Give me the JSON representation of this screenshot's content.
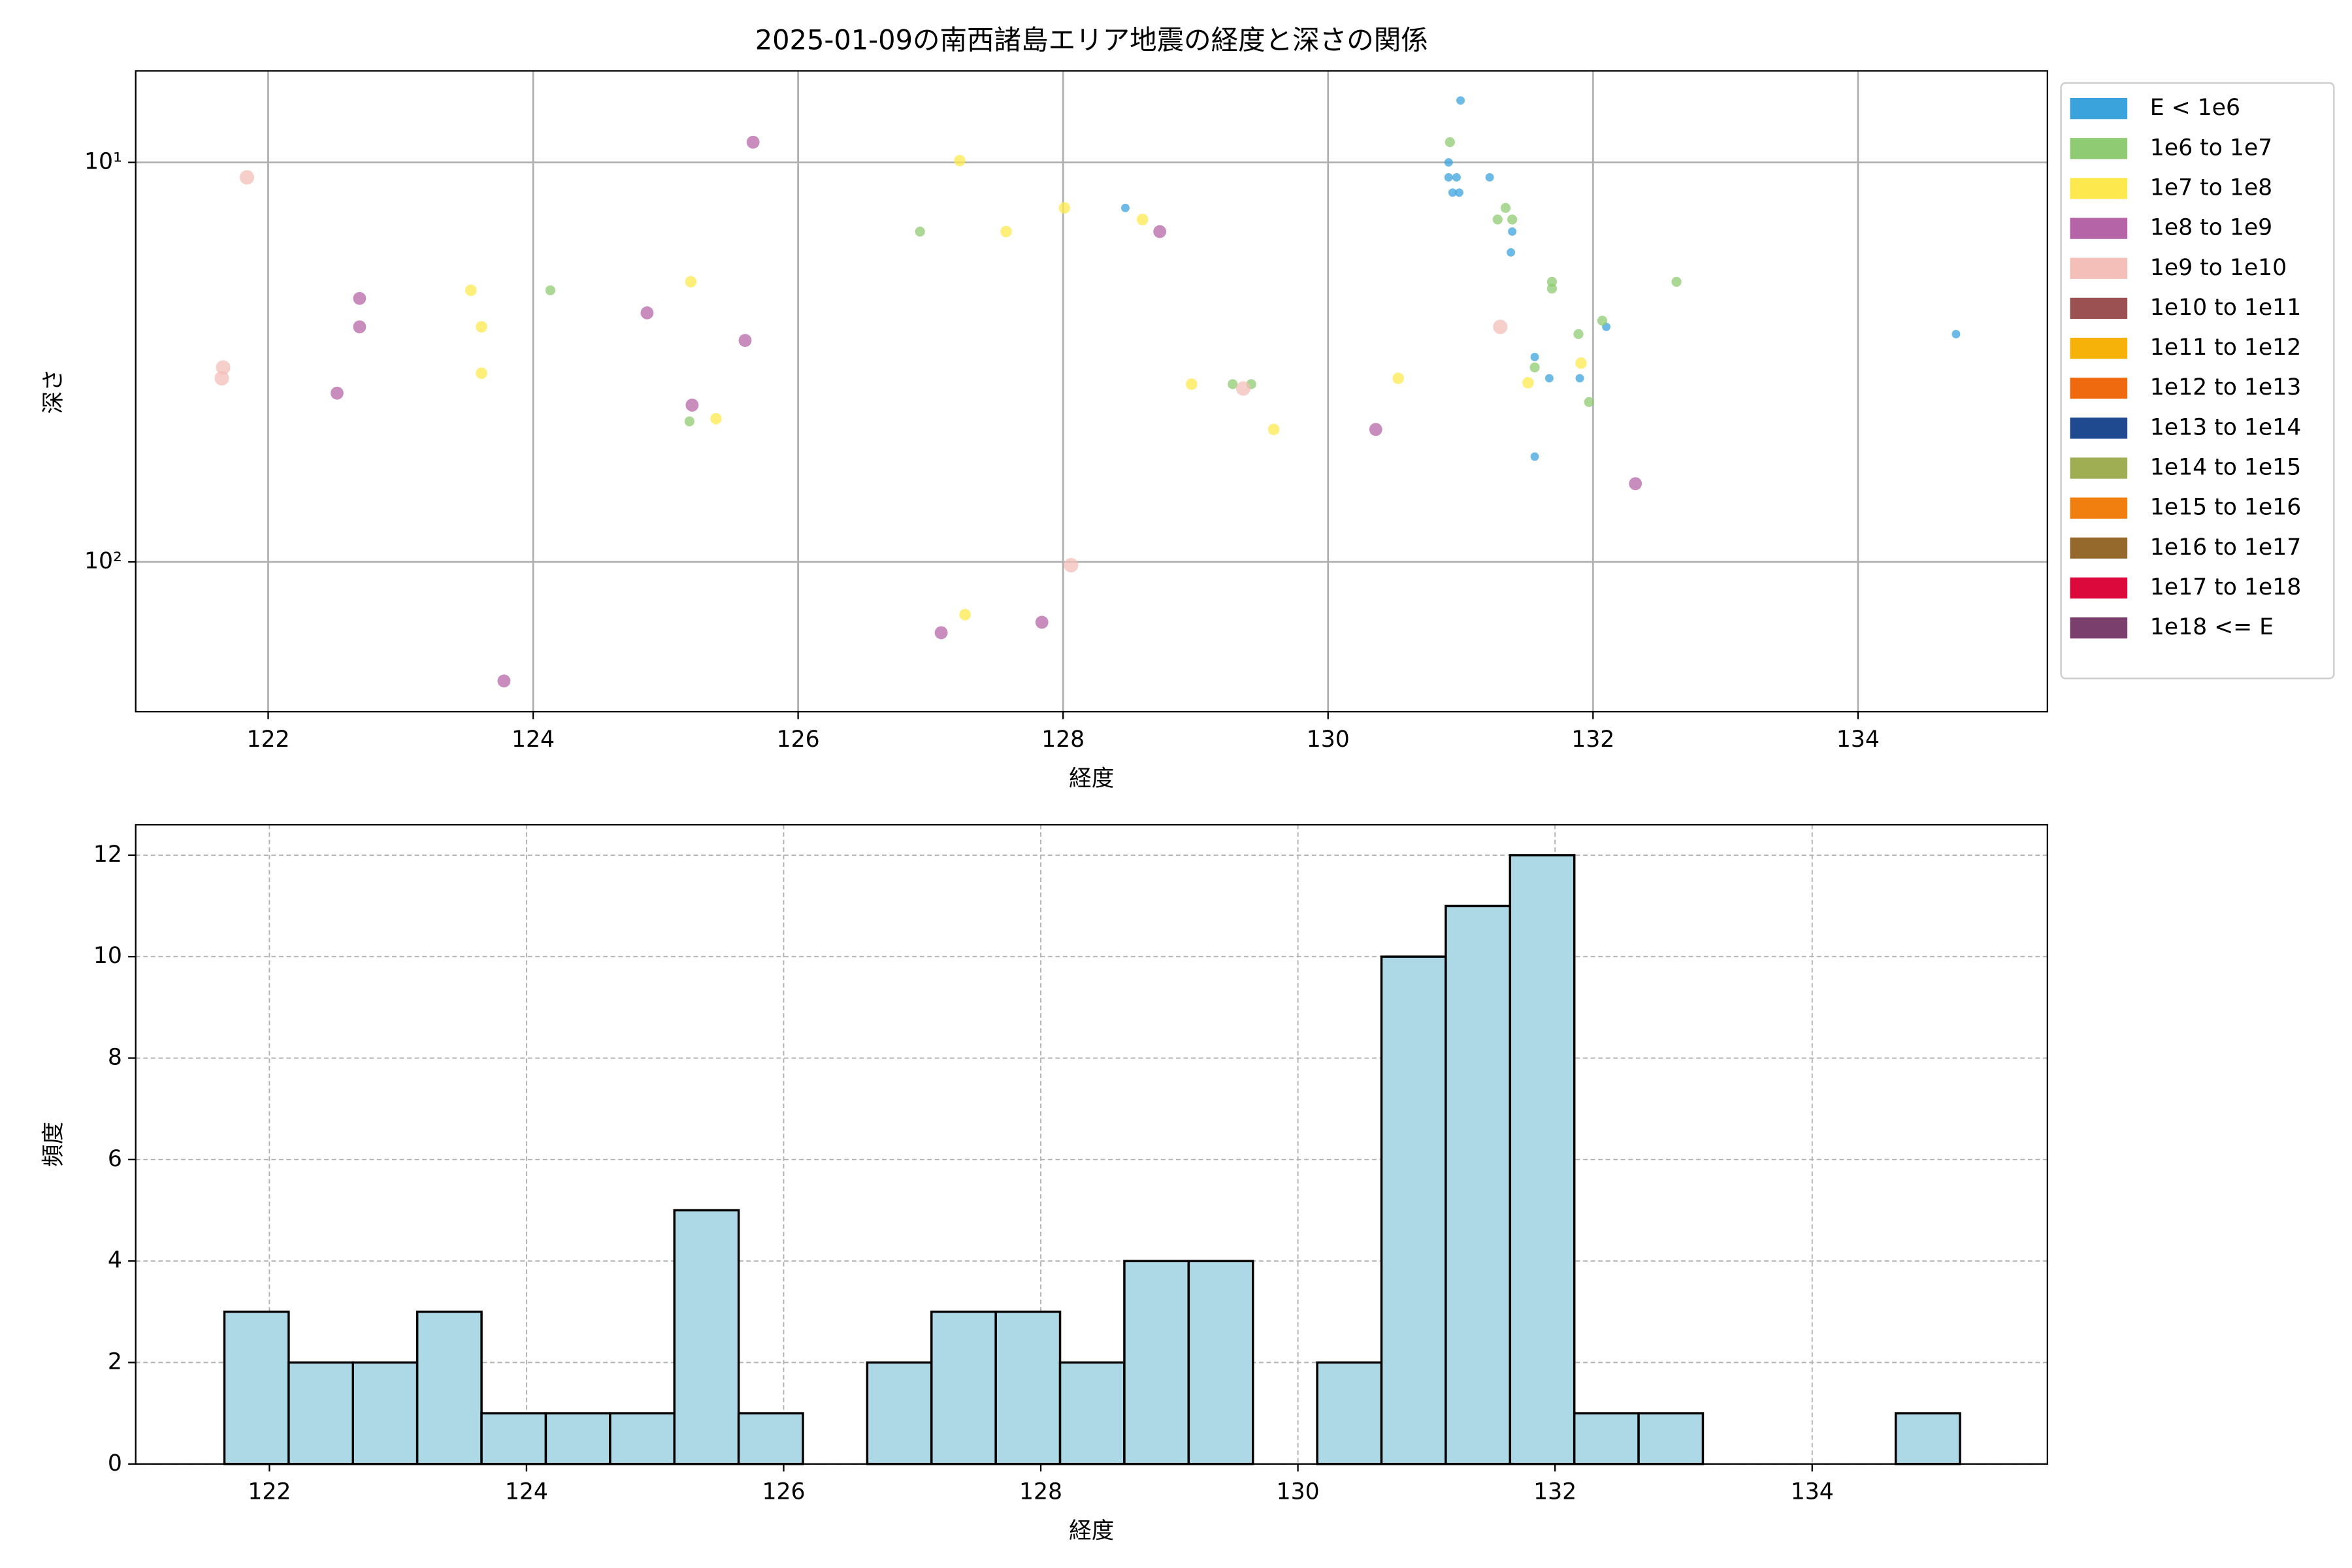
{
  "chart_data": [
    {
      "type": "scatter",
      "title": "2025-01-09の南西諸島エリア地震の経度と深さの関係",
      "xlabel": "経度",
      "ylabel": "深さ",
      "xlim": [
        121.0,
        135.43
      ],
      "ylim": [
        5.9,
        237
      ],
      "yscale": "log",
      "y_inverted": true,
      "xticks": [
        122,
        124,
        126,
        128,
        130,
        132,
        134
      ],
      "yticks": [
        {
          "value": 10,
          "label": "10¹"
        },
        {
          "value": 100,
          "label": "10²"
        }
      ],
      "grid": true,
      "legend": "outside right",
      "series": [
        {
          "name": "E < 1e6",
          "color": "#3ba3dc",
          "x": [
            131.0,
            130.91,
            130.91,
            130.97,
            130.94,
            130.99,
            131.22,
            131.39,
            131.38,
            132.1,
            131.56,
            131.67,
            131.9,
            131.56,
            134.74,
            128.47
          ],
          "values": [
            7.0,
            10,
            10.9,
            10.9,
            11.9,
            11.9,
            10.9,
            14.9,
            16.8,
            25.8,
            30.7,
            34.7,
            34.7,
            54.5,
            26.9,
            13.0
          ]
        },
        {
          "name": "1e6 to 1e7",
          "color": "#8fcb72",
          "x": [
            130.92,
            126.92,
            124.13,
            131.34,
            131.28,
            131.39,
            131.69,
            131.69,
            132.63,
            132.07,
            131.89,
            131.56,
            131.97,
            129.28,
            129.42,
            125.18
          ],
          "values": [
            8.9,
            14.9,
            20.9,
            13.0,
            13.9,
            13.9,
            19.9,
            20.7,
            19.9,
            24.9,
            26.9,
            32.6,
            39.8,
            35.9,
            35.9,
            44.5
          ]
        },
        {
          "name": "1e7 to 1e8",
          "color": "#fde84e",
          "x": [
            127.22,
            128.01,
            128.6,
            127.57,
            123.53,
            125.19,
            123.61,
            123.61,
            125.38,
            128.97,
            130.53,
            131.51,
            131.91,
            129.59,
            127.26
          ],
          "values": [
            9.9,
            13.0,
            13.9,
            14.9,
            20.9,
            19.9,
            25.8,
            33.7,
            43.8,
            35.9,
            34.7,
            35.6,
            31.8,
            46.6,
            135.5
          ]
        },
        {
          "name": "1e8 to 1e9",
          "color": "#b565a7",
          "x": [
            125.66,
            128.73,
            122.69,
            122.69,
            124.86,
            125.6,
            122.52,
            125.2,
            130.36,
            132.32,
            127.84,
            127.08,
            123.78
          ],
          "values": [
            8.9,
            14.9,
            21.9,
            25.8,
            23.8,
            27.9,
            37.8,
            40.5,
            46.6,
            63.7,
            141.6,
            150.4,
            198.6
          ]
        },
        {
          "name": "1e9 to 1e10",
          "color": "#f4bfb8",
          "x": [
            121.84,
            121.66,
            121.65,
            131.3,
            129.36,
            128.06
          ],
          "values": [
            10.9,
            32.6,
            34.7,
            25.8,
            36.8,
            101.9
          ]
        },
        {
          "name": "1e10 to 1e11",
          "color": "#9b5151",
          "x": [],
          "values": []
        },
        {
          "name": "1e11 to 1e12",
          "color": "#f7b20a",
          "x": [],
          "values": []
        },
        {
          "name": "1e12 to 1e13",
          "color": "#ef6a0f",
          "x": [],
          "values": []
        },
        {
          "name": "1e13 to 1e14",
          "color": "#1f4a8f",
          "x": [],
          "values": []
        },
        {
          "name": "1e14 to 1e15",
          "color": "#9fae52",
          "x": [],
          "values": []
        },
        {
          "name": "1e15 to 1e16",
          "color": "#f07f10",
          "x": [],
          "values": []
        },
        {
          "name": "1e16 to 1e17",
          "color": "#95692b",
          "x": [],
          "values": []
        },
        {
          "name": "1e17 to 1e18",
          "color": "#dc0a3c",
          "x": [],
          "values": []
        },
        {
          "name": "1e18 <= E",
          "color": "#7b3f6e",
          "x": [],
          "values": []
        }
      ]
    },
    {
      "type": "histogram",
      "xlabel": "経度",
      "ylabel": "頻度",
      "bins": [
        121.65,
        122.15,
        122.65,
        123.15,
        123.65,
        124.15,
        124.65,
        125.15,
        125.65,
        126.15,
        126.65,
        127.15,
        127.65,
        128.15,
        128.65,
        129.15,
        129.65,
        130.15,
        130.65,
        131.15,
        131.65,
        132.15,
        132.65,
        133.15,
        133.65,
        134.15,
        134.65,
        135.15
      ],
      "counts": [
        3,
        2,
        2,
        3,
        1,
        1,
        1,
        5,
        1,
        0,
        2,
        3,
        3,
        2,
        4,
        4,
        0,
        2,
        10,
        11,
        12,
        1,
        1,
        0,
        0,
        0,
        1
      ],
      "color": "#add8e6",
      "edgecolor": "#000000",
      "xlim": [
        120.96,
        135.83
      ],
      "ylim": [
        0,
        12.6
      ],
      "xticks": [
        122,
        124,
        126,
        128,
        130,
        132,
        134
      ],
      "yticks": [
        0,
        2,
        4,
        6,
        8,
        10,
        12
      ],
      "grid": "dashed"
    }
  ]
}
